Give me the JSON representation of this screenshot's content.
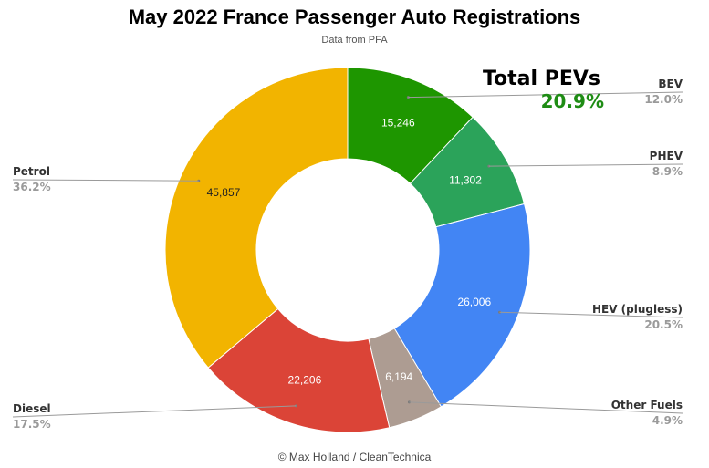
{
  "title": "May 2022 France Passenger Auto Registrations",
  "subtitle": "Data from PFA",
  "callout": {
    "title": "Total PEVs",
    "value": "20.9%"
  },
  "credit": "© Max Holland / CleanTechnica",
  "colors": {
    "BEV": "#1e9600",
    "PHEV": "#2ba35a",
    "HEV (plugless)": "#4285f4",
    "Other Fuels": "#ad9c92",
    "Diesel": "#db4437",
    "Petrol": "#f2b400",
    "callout_value": "#1e8c14"
  },
  "chart_data": {
    "type": "pie",
    "donut": true,
    "start": "top",
    "direction": "clockwise",
    "slices": [
      {
        "name": "BEV",
        "value": 15246,
        "value_label": "15,246",
        "pct_label": "12.0%"
      },
      {
        "name": "PHEV",
        "value": 11302,
        "value_label": "11,302",
        "pct_label": "8.9%"
      },
      {
        "name": "HEV (plugless)",
        "value": 26006,
        "value_label": "26,006",
        "pct_label": "20.5%"
      },
      {
        "name": "Other Fuels",
        "value": 6194,
        "value_label": "6,194",
        "pct_label": "4.9%"
      },
      {
        "name": "Diesel",
        "value": 22206,
        "value_label": "22,206",
        "pct_label": "17.5%"
      },
      {
        "name": "Petrol",
        "value": 45857,
        "value_label": "45,857",
        "pct_label": "36.2%"
      }
    ]
  }
}
